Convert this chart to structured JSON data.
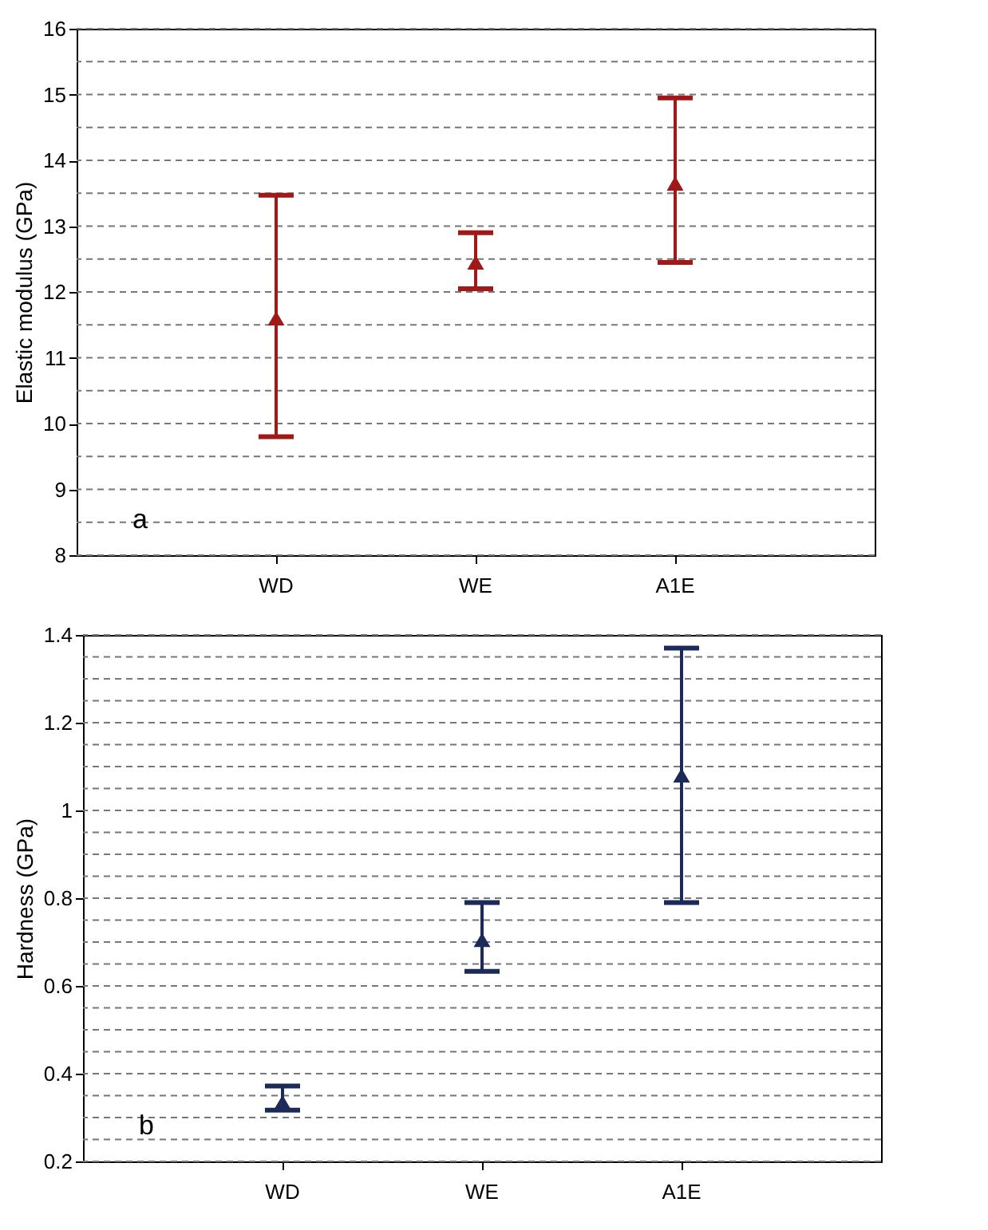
{
  "chart_data": [
    {
      "type": "scatter",
      "ylabel": "Elastic modulus (GPa)",
      "annotations": [
        "a"
      ],
      "categories": [
        "WD",
        "WE",
        "A1E"
      ],
      "series": [
        {
          "color": "#a01818",
          "values": [
            11.6,
            12.45,
            13.65
          ],
          "errors": [
            [
              9.8,
              13.47
            ],
            [
              12.05,
              12.9
            ],
            [
              12.45,
              14.95
            ]
          ]
        }
      ],
      "ylim": [
        8,
        16
      ],
      "yticks": [
        8,
        {
          "value": 8.5,
          "label": null
        },
        9,
        {
          "value": 9.5,
          "label": null
        },
        10,
        {
          "value": 10.5,
          "label": null
        },
        11,
        {
          "value": 11.5,
          "label": null
        },
        12,
        {
          "value": 12.5,
          "label": null
        },
        13,
        {
          "value": 13.5,
          "label": null
        },
        14,
        {
          "value": 14.5,
          "label": null
        },
        15,
        {
          "value": 15.5,
          "label": null
        },
        16
      ],
      "grid": "y",
      "marker": "triangle"
    },
    {
      "type": "scatter",
      "ylabel": "Hardness (GPa)",
      "annotations": [
        "b"
      ],
      "categories": [
        "WD",
        "WE",
        "A1E"
      ],
      "series": [
        {
          "color": "#1c2a5a",
          "values": [
            0.335,
            0.705,
            1.08
          ],
          "errors": [
            [
              0.317,
              0.372
            ],
            [
              0.633,
              0.79
            ],
            [
              0.79,
              1.37
            ]
          ]
        }
      ],
      "ylim": [
        0.2,
        1.4
      ],
      "yticks": [
        0.2,
        {
          "value": 0.25,
          "label": null
        },
        {
          "value": 0.3,
          "label": null
        },
        {
          "value": 0.35,
          "label": null
        },
        0.4,
        {
          "value": 0.45,
          "label": null
        },
        {
          "value": 0.5,
          "label": null
        },
        {
          "value": 0.55,
          "label": null
        },
        0.6,
        {
          "value": 0.65,
          "label": null
        },
        {
          "value": 0.7,
          "label": null
        },
        {
          "value": 0.75,
          "label": null
        },
        0.8,
        {
          "value": 0.85,
          "label": null
        },
        {
          "value": 0.9,
          "label": null
        },
        {
          "value": 0.95,
          "label": null
        },
        1,
        {
          "value": 1.05,
          "label": null
        },
        {
          "value": 1.1,
          "label": null
        },
        {
          "value": 1.15,
          "label": null
        },
        1.2,
        {
          "value": 1.25,
          "label": null
        },
        {
          "value": 1.3,
          "label": null
        },
        {
          "value": 1.35,
          "label": null
        },
        1.4
      ],
      "grid": "y",
      "marker": "triangle"
    }
  ]
}
